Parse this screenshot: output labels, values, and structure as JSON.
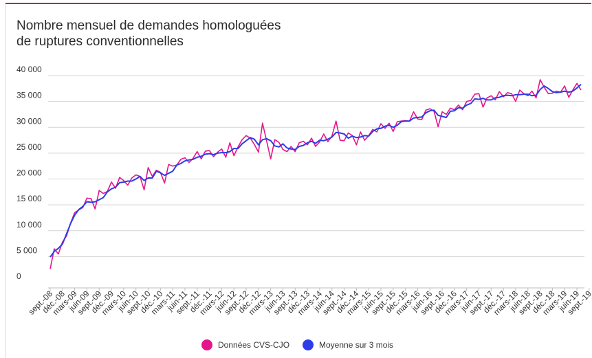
{
  "title_lines": [
    "Nombre mensuel de demandes homologuées",
    "de ruptures conventionnelles"
  ],
  "legend": [
    {
      "label": "Données CVS-CJO",
      "color": "#e5158c"
    },
    {
      "label": "Moyenne sur 3 mois",
      "color": "#2d3ce8"
    }
  ],
  "chart_data": {
    "type": "line",
    "title": "Nombre mensuel de demandes homologuées de ruptures conventionnelles",
    "xlabel": "",
    "ylabel": "",
    "ylim": [
      0,
      40000
    ],
    "yticks": [
      0,
      5000,
      10000,
      15000,
      20000,
      25000,
      30000,
      35000,
      40000
    ],
    "ytick_labels": [
      "0",
      "5 000",
      "10 000",
      "15 000",
      "20 000",
      "25 000",
      "30 000",
      "35 000",
      "40 000"
    ],
    "grid": true,
    "legend_position": "bottom",
    "xtick_labels": [
      "sept.-08",
      "déc.-08",
      "mars-09",
      "juin-09",
      "sept.-09",
      "déc.-09",
      "mars-10",
      "juin-10",
      "sept.-10",
      "déc.-10",
      "mars-11",
      "juin-11",
      "sept.-11",
      "déc.-11",
      "mars-12",
      "juin-12",
      "sept.-12",
      "déc.-12",
      "mars-13",
      "juin-13",
      "sept.-13",
      "déc.-13",
      "mars-14",
      "juin-14",
      "sept.-14",
      "déc.-14",
      "mars-15",
      "juin-15",
      "sept.-15",
      "déc.-15",
      "mars-16",
      "juin-16",
      "sept.-16",
      "déc.-16",
      "mars-17",
      "juin-17",
      "sept.-17",
      "déc.-17",
      "mars-18",
      "juin-18",
      "sept.-18",
      "déc.-18",
      "mars-19",
      "juin-19",
      "sept.-19"
    ],
    "series": [
      {
        "name": "Données CVS-CJO",
        "color": "#e5158c",
        "values": [
          2600,
          6500,
          5500,
          7800,
          9000,
          11500,
          13500,
          14000,
          14500,
          16300,
          16200,
          14200,
          17800,
          17200,
          17600,
          19400,
          18200,
          20300,
          19700,
          18800,
          20200,
          20800,
          20500,
          17900,
          22200,
          20500,
          21700,
          21300,
          19200,
          22800,
          22500,
          22700,
          23800,
          24100,
          23200,
          24000,
          25300,
          23900,
          25400,
          25500,
          24300,
          25200,
          25800,
          24200,
          27000,
          24500,
          26200,
          27600,
          28400,
          27900,
          26700,
          25200,
          30800,
          27400,
          23900,
          27600,
          27100,
          25700,
          25300,
          26300,
          25300,
          27000,
          27300,
          26600,
          27900,
          26300,
          27200,
          28700,
          27200,
          28300,
          31200,
          27500,
          27400,
          28900,
          28400,
          26600,
          29100,
          27500,
          28400,
          29600,
          29100,
          30700,
          29800,
          30800,
          29200,
          31100,
          31200,
          31300,
          31200,
          33000,
          31600,
          31500,
          33300,
          33600,
          33100,
          30100,
          33000,
          32500,
          33700,
          33400,
          34300,
          33400,
          35000,
          35200,
          36400,
          36500,
          33900,
          35700,
          36100,
          35300,
          36900,
          35900,
          36700,
          36500,
          35000,
          37200,
          36500,
          36100,
          37000,
          35700,
          39200,
          37700,
          36500,
          36600,
          37000,
          36800,
          38000,
          35800,
          37200,
          38500,
          37200
        ]
      },
      {
        "name": "Moyenne sur 3 mois",
        "color": "#2d3ce8",
        "values": [
          4900,
          6000,
          6600,
          7400,
          9400,
          11400,
          13000,
          14100,
          14700,
          15600,
          15500,
          15600,
          16000,
          16400,
          17500,
          18100,
          18400,
          19300,
          19400,
          19600,
          19600,
          20000,
          20500,
          19700,
          20200,
          20200,
          21500,
          21200,
          20700,
          21100,
          21500,
          22700,
          23000,
          23500,
          23700,
          23800,
          24200,
          24400,
          24800,
          24900,
          24700,
          25000,
          25100,
          25100,
          25300,
          25900,
          25900,
          26800,
          27400,
          28000,
          27700,
          26600,
          27600,
          27800,
          27400,
          26400,
          26200,
          26800,
          26000,
          25800,
          25700,
          26300,
          26500,
          27000,
          27300,
          26900,
          27500,
          27400,
          27700,
          28100,
          29000,
          28900,
          28700,
          27900,
          28300,
          28000,
          28100,
          28400,
          28300,
          29200,
          29700,
          29800,
          30200,
          30400,
          30000,
          30400,
          31100,
          31200,
          31200,
          31800,
          31900,
          32000,
          32800,
          33200,
          33300,
          32300,
          32100,
          31900,
          33100,
          33200,
          33800,
          33700,
          34300,
          34600,
          35500,
          35400,
          35600,
          35300,
          35300,
          35700,
          35800,
          36100,
          36200,
          36100,
          36300,
          36300,
          36400,
          36400,
          36100,
          36200,
          37300,
          38000,
          37500,
          36900,
          36700,
          36800,
          37000,
          36800,
          37000,
          37600,
          38300
        ]
      }
    ]
  }
}
